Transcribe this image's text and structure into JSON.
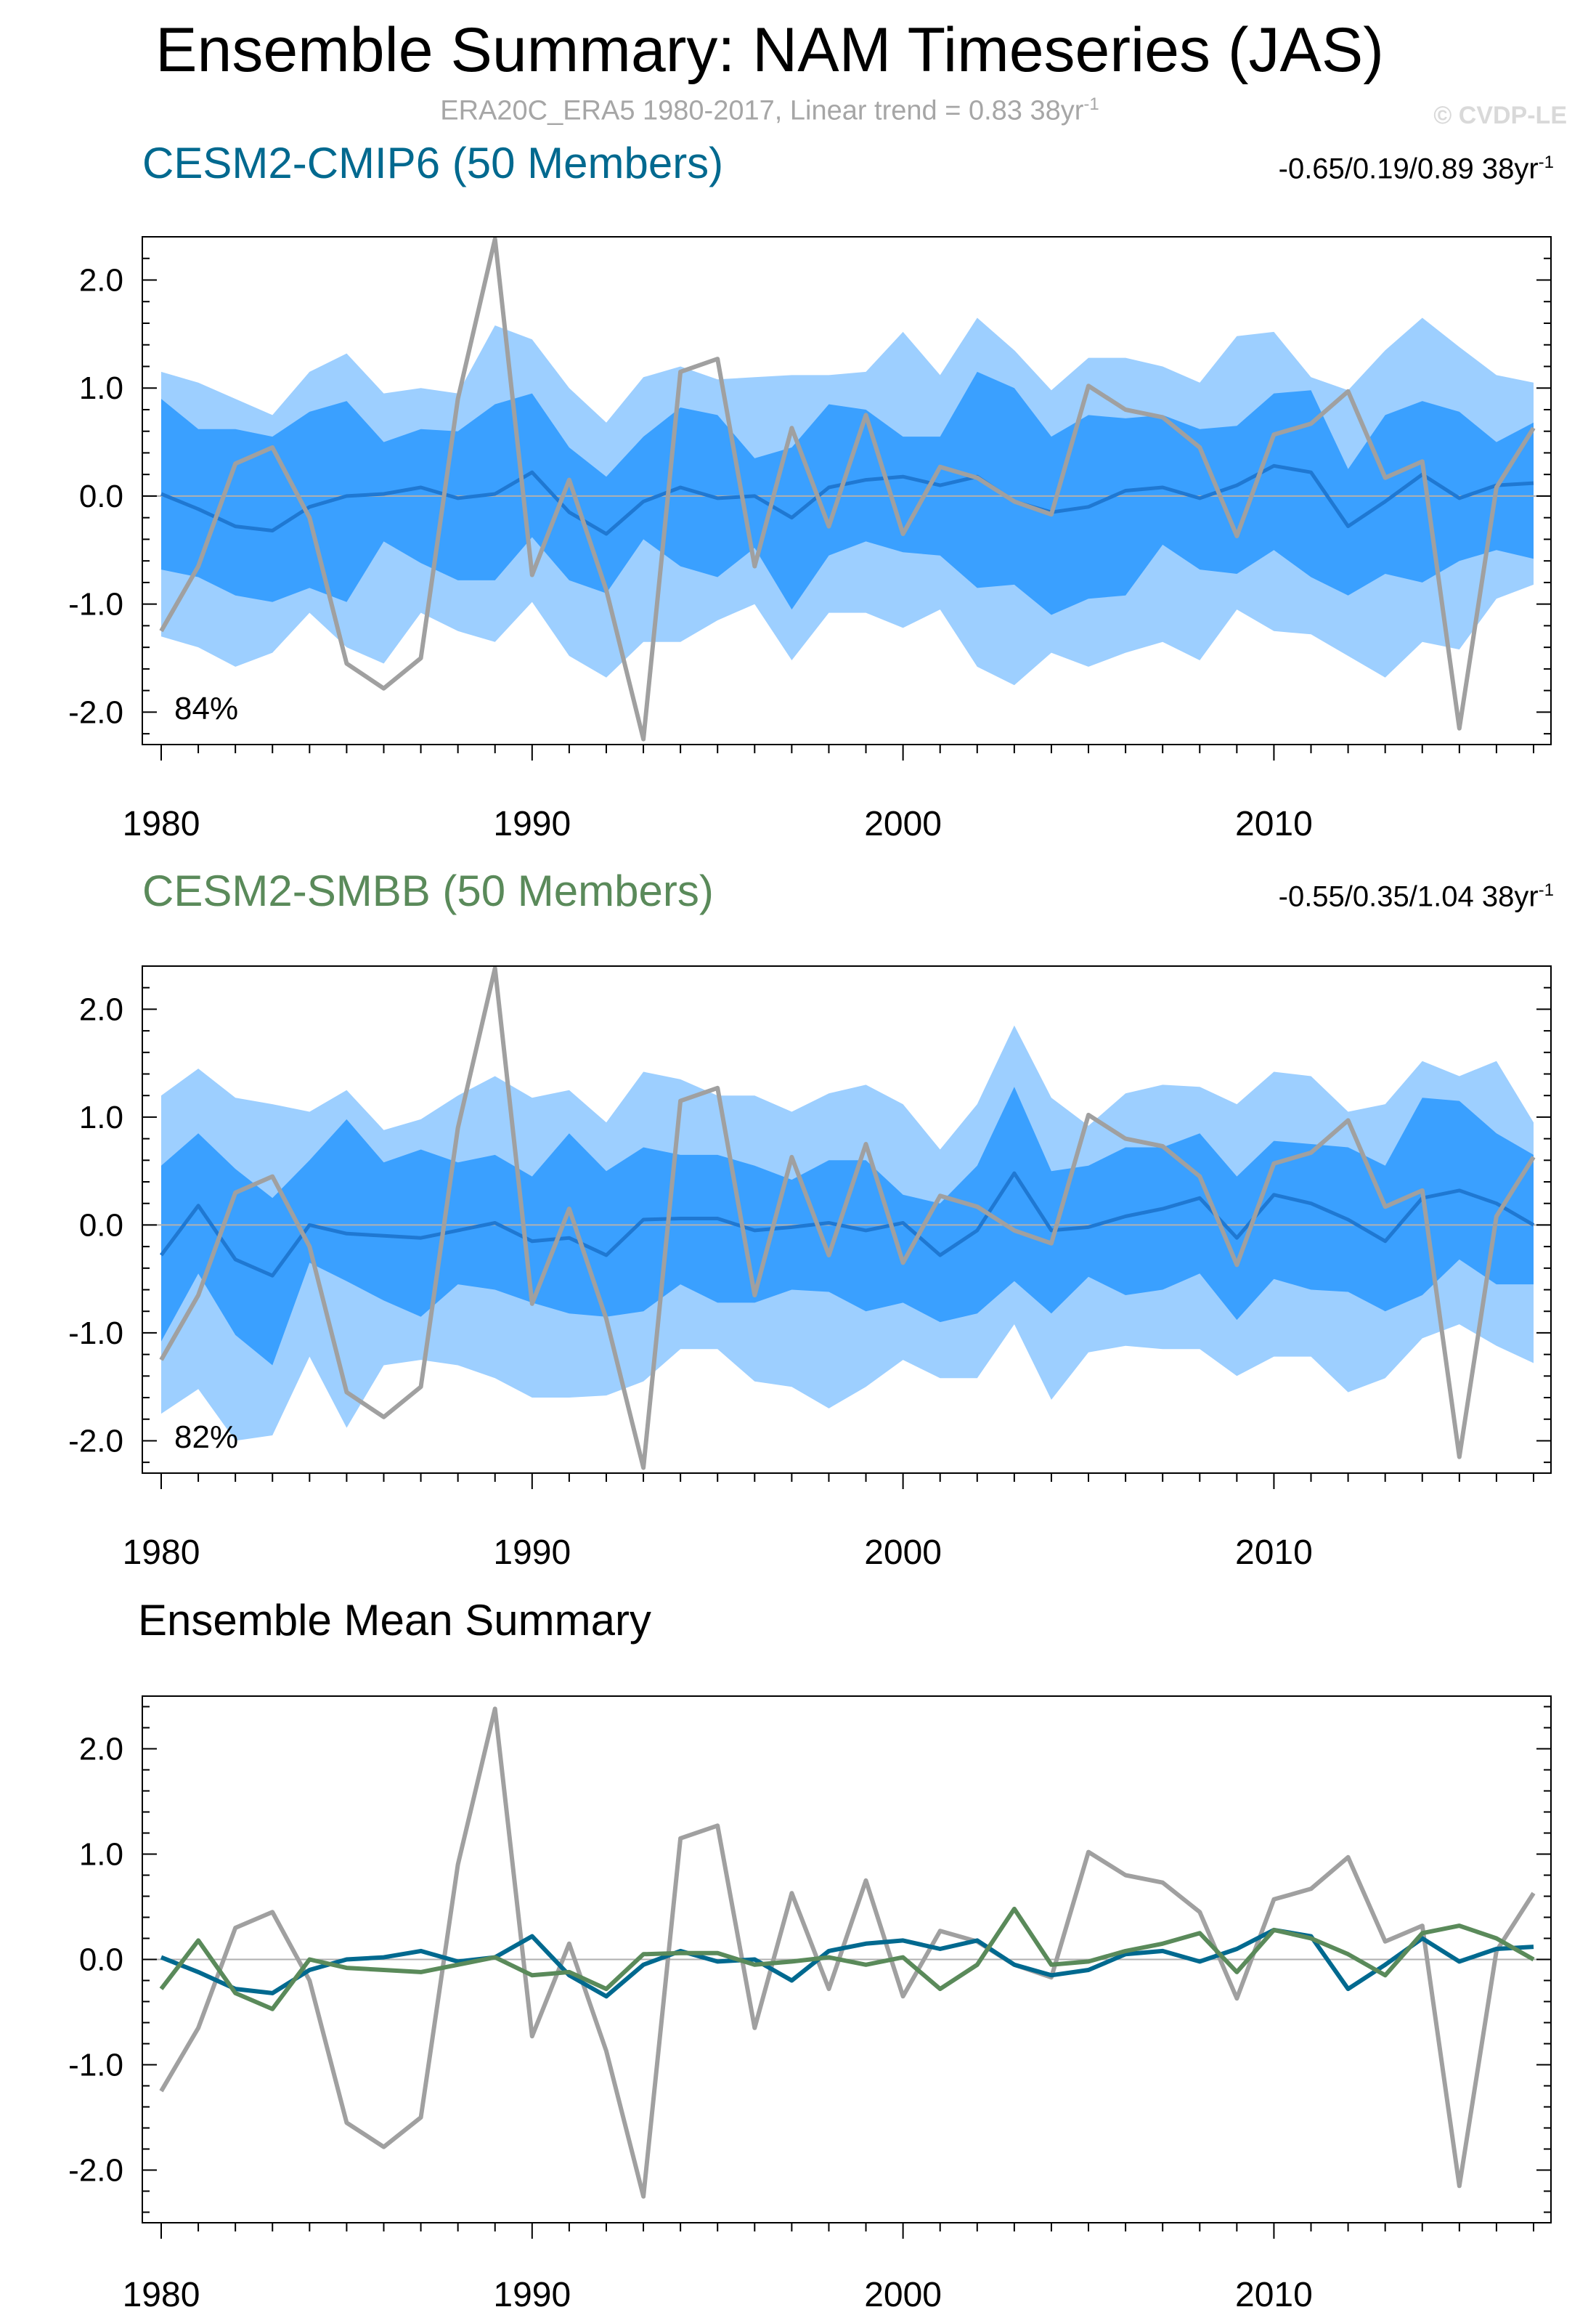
{
  "title": "Ensemble Summary: NAM Timeseries (JAS)",
  "subtitle": "ERA20C_ERA5 1980-2017, Linear trend = 0.83 38yr",
  "subtitle_sup": "-1",
  "watermark": "© CVDP-LE",
  "colors": {
    "cmip6": "#00698f",
    "smbb": "#5a8a5a",
    "obs": "#a0a0a0",
    "band_outer": "#9dcfff",
    "band_inner": "#3aa0ff",
    "ens_mean_line": "#1f78d2",
    "zero_line": "#b0b0b0"
  },
  "panels": {
    "cmip6": {
      "title": "CESM2-CMIP6 (50 Members)",
      "range_text": "-0.65/0.19/0.89 38yr",
      "range_sup": "-1",
      "pct_label": "84%"
    },
    "smbb": {
      "title": "CESM2-SMBB (50 Members)",
      "range_text": "-0.55/0.35/1.04 38yr",
      "range_sup": "-1",
      "pct_label": "82%"
    },
    "summary": {
      "title": "Ensemble Mean Summary"
    }
  },
  "chart_data": [
    {
      "type": "area",
      "name": "CESM2-CMIP6 ensemble spread",
      "years": [
        1980,
        1981,
        1982,
        1983,
        1984,
        1985,
        1986,
        1987,
        1988,
        1989,
        1990,
        1991,
        1992,
        1993,
        1994,
        1995,
        1996,
        1997,
        1998,
        1999,
        2000,
        2001,
        2002,
        2003,
        2004,
        2005,
        2006,
        2007,
        2008,
        2009,
        2010,
        2011,
        2012,
        2013,
        2014,
        2015,
        2016,
        2017
      ],
      "ylim": [
        -2.3,
        2.4
      ],
      "yticks": [
        "-2.0",
        "-1.0",
        "0.0",
        "1.0",
        "2.0"
      ],
      "xticks": [
        "1980",
        "1990",
        "2000",
        "2010"
      ],
      "outer_upper": [
        1.15,
        1.05,
        0.9,
        0.75,
        1.15,
        1.32,
        0.95,
        1.0,
        0.95,
        1.58,
        1.45,
        1.0,
        0.68,
        1.1,
        1.2,
        1.08,
        1.1,
        1.12,
        1.12,
        1.15,
        1.52,
        1.12,
        1.65,
        1.35,
        0.98,
        1.28,
        1.28,
        1.2,
        1.05,
        1.48,
        1.52,
        1.1,
        0.98,
        1.35,
        1.65,
        1.38,
        1.12,
        1.05
      ],
      "inner_upper": [
        0.9,
        0.62,
        0.62,
        0.55,
        0.78,
        0.88,
        0.5,
        0.62,
        0.6,
        0.85,
        0.95,
        0.45,
        0.18,
        0.55,
        0.82,
        0.75,
        0.35,
        0.45,
        0.85,
        0.8,
        0.55,
        0.55,
        1.15,
        1.0,
        0.55,
        0.75,
        0.72,
        0.75,
        0.62,
        0.65,
        0.95,
        0.98,
        0.25,
        0.75,
        0.88,
        0.78,
        0.5,
        0.68
      ],
      "mean": [
        0.02,
        -0.12,
        -0.28,
        -0.32,
        -0.1,
        0.0,
        0.02,
        0.08,
        -0.02,
        0.02,
        0.22,
        -0.15,
        -0.35,
        -0.05,
        0.08,
        -0.02,
        0.0,
        -0.2,
        0.08,
        0.15,
        0.18,
        0.1,
        0.18,
        -0.05,
        -0.15,
        -0.1,
        0.05,
        0.08,
        -0.02,
        0.1,
        0.28,
        0.22,
        -0.28,
        -0.05,
        0.2,
        -0.02,
        0.1,
        0.12
      ],
      "inner_lower": [
        -0.68,
        -0.75,
        -0.92,
        -0.98,
        -0.85,
        -0.98,
        -0.42,
        -0.62,
        -0.78,
        -0.78,
        -0.38,
        -0.78,
        -0.9,
        -0.4,
        -0.65,
        -0.75,
        -0.48,
        -1.05,
        -0.55,
        -0.42,
        -0.52,
        -0.55,
        -0.85,
        -0.82,
        -1.1,
        -0.95,
        -0.92,
        -0.45,
        -0.68,
        -0.72,
        -0.5,
        -0.75,
        -0.92,
        -0.72,
        -0.8,
        -0.6,
        -0.5,
        -0.58
      ],
      "outer_lower": [
        -1.3,
        -1.4,
        -1.58,
        -1.45,
        -1.08,
        -1.4,
        -1.55,
        -1.08,
        -1.25,
        -1.35,
        -0.98,
        -1.48,
        -1.68,
        -1.35,
        -1.35,
        -1.15,
        -1.0,
        -1.52,
        -1.08,
        -1.08,
        -1.22,
        -1.05,
        -1.58,
        -1.75,
        -1.45,
        -1.58,
        -1.45,
        -1.35,
        -1.52,
        -1.05,
        -1.25,
        -1.28,
        -1.48,
        -1.68,
        -1.35,
        -1.42,
        -0.95,
        -0.82
      ],
      "obs": [
        -1.25,
        -0.65,
        0.3,
        0.45,
        -0.2,
        -1.55,
        -1.78,
        -1.5,
        0.9,
        2.38,
        -0.73,
        0.15,
        -0.87,
        -2.25,
        1.15,
        1.27,
        -0.65,
        0.63,
        -0.28,
        0.75,
        -0.35,
        0.27,
        0.17,
        -0.05,
        -0.17,
        1.02,
        0.8,
        0.73,
        0.45,
        -0.37,
        0.57,
        0.67,
        0.97,
        0.17,
        0.32,
        -2.15,
        0.08,
        0.63
      ]
    },
    {
      "type": "area",
      "name": "CESM2-SMBB ensemble spread",
      "years": [
        1980,
        1981,
        1982,
        1983,
        1984,
        1985,
        1986,
        1987,
        1988,
        1989,
        1990,
        1991,
        1992,
        1993,
        1994,
        1995,
        1996,
        1997,
        1998,
        1999,
        2000,
        2001,
        2002,
        2003,
        2004,
        2005,
        2006,
        2007,
        2008,
        2009,
        2010,
        2011,
        2012,
        2013,
        2014,
        2015,
        2016,
        2017
      ],
      "ylim": [
        -2.3,
        2.4
      ],
      "yticks": [
        "-2.0",
        "-1.0",
        "0.0",
        "1.0",
        "2.0"
      ],
      "xticks": [
        "1980",
        "1990",
        "2000",
        "2010"
      ],
      "outer_upper": [
        1.2,
        1.45,
        1.18,
        1.12,
        1.05,
        1.25,
        0.88,
        0.98,
        1.2,
        1.38,
        1.18,
        1.25,
        0.95,
        1.42,
        1.35,
        1.2,
        1.2,
        1.05,
        1.22,
        1.3,
        1.12,
        0.7,
        1.12,
        1.85,
        1.18,
        0.92,
        1.22,
        1.3,
        1.28,
        1.12,
        1.42,
        1.38,
        1.05,
        1.12,
        1.52,
        1.38,
        1.52,
        0.95
      ],
      "inner_upper": [
        0.55,
        0.85,
        0.52,
        0.25,
        0.6,
        0.98,
        0.58,
        0.7,
        0.58,
        0.65,
        0.45,
        0.85,
        0.5,
        0.72,
        0.65,
        0.65,
        0.55,
        0.42,
        0.6,
        0.6,
        0.28,
        0.2,
        0.55,
        1.28,
        0.5,
        0.55,
        0.72,
        0.72,
        0.85,
        0.45,
        0.78,
        0.75,
        0.72,
        0.55,
        1.18,
        1.15,
        0.85,
        0.65
      ],
      "mean": [
        -0.28,
        0.18,
        -0.32,
        -0.47,
        0.0,
        -0.08,
        -0.1,
        -0.12,
        -0.05,
        0.02,
        -0.15,
        -0.12,
        -0.28,
        0.05,
        0.06,
        0.06,
        -0.05,
        -0.02,
        0.02,
        -0.05,
        0.02,
        -0.28,
        -0.05,
        0.48,
        -0.05,
        -0.02,
        0.08,
        0.15,
        0.25,
        -0.12,
        0.28,
        0.2,
        0.05,
        -0.15,
        0.25,
        0.32,
        0.2,
        0.0
      ],
      "inner_lower": [
        -1.08,
        -0.45,
        -1.02,
        -1.3,
        -0.35,
        -0.52,
        -0.7,
        -0.85,
        -0.55,
        -0.6,
        -0.72,
        -0.82,
        -0.85,
        -0.8,
        -0.55,
        -0.72,
        -0.72,
        -0.6,
        -0.62,
        -0.8,
        -0.72,
        -0.9,
        -0.82,
        -0.52,
        -0.82,
        -0.48,
        -0.65,
        -0.6,
        -0.45,
        -0.88,
        -0.5,
        -0.6,
        -0.62,
        -0.8,
        -0.65,
        -0.32,
        -0.55,
        -0.55
      ],
      "outer_lower": [
        -1.75,
        -1.52,
        -2.0,
        -1.95,
        -1.22,
        -1.88,
        -1.3,
        -1.25,
        -1.3,
        -1.42,
        -1.6,
        -1.6,
        -1.58,
        -1.45,
        -1.15,
        -1.15,
        -1.45,
        -1.5,
        -1.7,
        -1.5,
        -1.25,
        -1.42,
        -1.42,
        -0.92,
        -1.62,
        -1.18,
        -1.12,
        -1.15,
        -1.15,
        -1.4,
        -1.22,
        -1.22,
        -1.55,
        -1.42,
        -1.05,
        -0.92,
        -1.12,
        -1.28
      ],
      "obs": [
        -1.25,
        -0.65,
        0.3,
        0.45,
        -0.2,
        -1.55,
        -1.78,
        -1.5,
        0.9,
        2.38,
        -0.73,
        0.15,
        -0.87,
        -2.25,
        1.15,
        1.27,
        -0.65,
        0.63,
        -0.28,
        0.75,
        -0.35,
        0.27,
        0.17,
        -0.05,
        -0.17,
        1.02,
        0.8,
        0.73,
        0.45,
        -0.37,
        0.57,
        0.67,
        0.97,
        0.17,
        0.32,
        -2.15,
        0.08,
        0.63
      ]
    },
    {
      "type": "line",
      "name": "Ensemble Mean Summary",
      "years": [
        1980,
        1981,
        1982,
        1983,
        1984,
        1985,
        1986,
        1987,
        1988,
        1989,
        1990,
        1991,
        1992,
        1993,
        1994,
        1995,
        1996,
        1997,
        1998,
        1999,
        2000,
        2001,
        2002,
        2003,
        2004,
        2005,
        2006,
        2007,
        2008,
        2009,
        2010,
        2011,
        2012,
        2013,
        2014,
        2015,
        2016,
        2017
      ],
      "ylim": [
        -2.5,
        2.5
      ],
      "yticks": [
        "-2.0",
        "-1.0",
        "0.0",
        "1.0",
        "2.0"
      ],
      "xticks": [
        "1980",
        "1990",
        "2000",
        "2010"
      ],
      "series": [
        {
          "name": "ERA20C_ERA5",
          "color": "#a0a0a0",
          "values": [
            -1.25,
            -0.65,
            0.3,
            0.45,
            -0.2,
            -1.55,
            -1.78,
            -1.5,
            0.9,
            2.38,
            -0.73,
            0.15,
            -0.87,
            -2.25,
            1.15,
            1.27,
            -0.65,
            0.63,
            -0.28,
            0.75,
            -0.35,
            0.27,
            0.17,
            -0.05,
            -0.17,
            1.02,
            0.8,
            0.73,
            0.45,
            -0.37,
            0.57,
            0.67,
            0.97,
            0.17,
            0.32,
            -2.15,
            0.08,
            0.63
          ]
        },
        {
          "name": "CESM2-CMIP6",
          "color": "#00698f",
          "values": [
            0.02,
            -0.12,
            -0.28,
            -0.32,
            -0.1,
            0.0,
            0.02,
            0.08,
            -0.02,
            0.02,
            0.22,
            -0.15,
            -0.35,
            -0.05,
            0.08,
            -0.02,
            0.0,
            -0.2,
            0.08,
            0.15,
            0.18,
            0.1,
            0.18,
            -0.05,
            -0.15,
            -0.1,
            0.05,
            0.08,
            -0.02,
            0.1,
            0.28,
            0.22,
            -0.28,
            -0.05,
            0.2,
            -0.02,
            0.1,
            0.12
          ]
        },
        {
          "name": "CESM2-SMBB",
          "color": "#5a8a5a",
          "values": [
            -0.28,
            0.18,
            -0.32,
            -0.47,
            0.0,
            -0.08,
            -0.1,
            -0.12,
            -0.05,
            0.02,
            -0.15,
            -0.12,
            -0.28,
            0.05,
            0.06,
            0.06,
            -0.05,
            -0.02,
            0.02,
            -0.05,
            0.02,
            -0.28,
            -0.05,
            0.48,
            -0.05,
            -0.02,
            0.08,
            0.15,
            0.25,
            -0.12,
            0.28,
            0.2,
            0.05,
            -0.15,
            0.25,
            0.32,
            0.2,
            0.0
          ]
        }
      ]
    }
  ]
}
